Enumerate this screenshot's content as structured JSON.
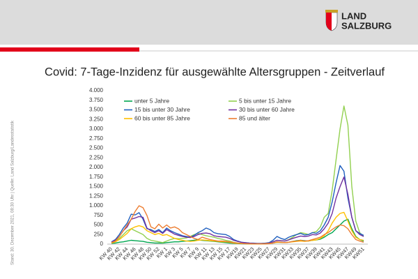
{
  "logo": {
    "line1": "LAND",
    "line2": "SALZBURG"
  },
  "source_note": "Stand: 30. Dezember 2021, 08:30 Uhr | Quelle: Land Salzburg/Landesstatistik",
  "chart_data": {
    "type": "line",
    "title": "Covid: 7-Tage-Inzidenz für ausgewählte Altersgruppen - Zeitverlauf",
    "categories": [
      "KW 40",
      null,
      "KW 42",
      null,
      "KW 44",
      null,
      "KW 46",
      null,
      "KW 48",
      null,
      "KW 50",
      null,
      "KW 52",
      null,
      "KW 1",
      null,
      "KW 3",
      null,
      "KW 5",
      null,
      "KW 7",
      null,
      "KW 9",
      null,
      "KW 11",
      null,
      "KW 13",
      null,
      "KW 15",
      null,
      "KW 17",
      null,
      "KW19",
      null,
      "KW21",
      null,
      "KW23",
      null,
      "KW25",
      null,
      "KW27",
      null,
      "KW29",
      null,
      "KW31",
      null,
      "KW33",
      null,
      "KW35",
      null,
      "KW37",
      null,
      "KW39",
      null,
      "KW41",
      null,
      "KW43",
      null,
      "KW45",
      null,
      "KW47",
      null,
      "KW49",
      null,
      "KW51"
    ],
    "series": [
      {
        "name": "unter 5 Jahre",
        "color": "#00a650",
        "values": [
          20,
          30,
          50,
          60,
          80,
          100,
          90,
          80,
          70,
          50,
          40,
          30,
          30,
          25,
          40,
          50,
          60,
          60,
          70,
          80,
          90,
          100,
          110,
          100,
          90,
          80,
          70,
          60,
          50,
          40,
          30,
          20,
          15,
          10,
          8,
          5,
          5,
          5,
          5,
          8,
          15,
          30,
          50,
          45,
          40,
          50,
          70,
          90,
          100,
          90,
          80,
          100,
          110,
          130,
          180,
          250,
          300,
          400,
          500,
          600,
          650,
          400,
          200,
          120,
          80
        ]
      },
      {
        "name": "5 bis unter 15 Jahre",
        "color": "#92d050",
        "values": [
          40,
          80,
          150,
          250,
          350,
          400,
          350,
          300,
          250,
          150,
          100,
          80,
          60,
          40,
          80,
          120,
          150,
          140,
          150,
          160,
          200,
          250,
          280,
          250,
          220,
          200,
          180,
          150,
          130,
          100,
          80,
          50,
          30,
          20,
          15,
          10,
          10,
          10,
          10,
          15,
          30,
          60,
          100,
          90,
          80,
          120,
          180,
          250,
          300,
          280,
          250,
          300,
          330,
          450,
          700,
          800,
          1400,
          2200,
          3000,
          3600,
          3100,
          1500,
          600,
          300,
          200
        ]
      },
      {
        "name": "15 bis unter 30 Jahre",
        "color": "#1f5fbf",
        "values": [
          60,
          120,
          250,
          420,
          550,
          780,
          760,
          820,
          650,
          400,
          380,
          330,
          380,
          300,
          420,
          350,
          300,
          260,
          220,
          200,
          180,
          230,
          300,
          350,
          420,
          380,
          300,
          270,
          260,
          250,
          200,
          120,
          80,
          50,
          40,
          30,
          25,
          20,
          20,
          25,
          40,
          100,
          200,
          150,
          120,
          180,
          220,
          250,
          280,
          240,
          250,
          300,
          280,
          350,
          500,
          700,
          1100,
          1600,
          2050,
          1900,
          1200,
          700,
          350,
          280,
          230
        ]
      },
      {
        "name": "30 bis unter 60 Jahre",
        "color": "#7030a0",
        "values": [
          50,
          100,
          200,
          350,
          450,
          650,
          680,
          720,
          700,
          420,
          350,
          300,
          350,
          280,
          380,
          320,
          260,
          230,
          200,
          180,
          170,
          200,
          250,
          280,
          290,
          270,
          220,
          200,
          190,
          180,
          150,
          100,
          70,
          45,
          35,
          25,
          20,
          15,
          15,
          20,
          30,
          60,
          100,
          90,
          80,
          110,
          150,
          180,
          210,
          200,
          210,
          250,
          240,
          290,
          400,
          550,
          800,
          1200,
          1500,
          1750,
          1300,
          700,
          350,
          250,
          200
        ]
      },
      {
        "name": "60 bis unter 85 Jahre",
        "color": "#ffc000",
        "values": [
          30,
          60,
          120,
          200,
          280,
          400,
          450,
          480,
          450,
          350,
          300,
          250,
          280,
          230,
          250,
          200,
          150,
          120,
          100,
          80,
          70,
          80,
          100,
          110,
          100,
          90,
          80,
          70,
          60,
          60,
          50,
          30,
          20,
          15,
          10,
          8,
          8,
          8,
          8,
          10,
          15,
          30,
          50,
          45,
          40,
          50,
          60,
          70,
          80,
          70,
          80,
          100,
          110,
          150,
          220,
          350,
          550,
          700,
          800,
          830,
          600,
          350,
          180,
          120,
          100
        ]
      },
      {
        "name": "85 und älter",
        "color": "#ed7d31",
        "values": [
          40,
          80,
          200,
          350,
          500,
          650,
          850,
          1000,
          950,
          750,
          450,
          400,
          520,
          420,
          500,
          420,
          450,
          400,
          300,
          250,
          200,
          150,
          120,
          180,
          150,
          120,
          100,
          80,
          80,
          70,
          60,
          40,
          30,
          20,
          10,
          8,
          5,
          5,
          5,
          5,
          10,
          30,
          60,
          50,
          40,
          50,
          70,
          80,
          100,
          80,
          90,
          120,
          150,
          180,
          250,
          300,
          380,
          450,
          500,
          480,
          400,
          250,
          120,
          80,
          50
        ]
      }
    ],
    "ylim": [
      0,
      4000
    ],
    "yticks": [
      0,
      250,
      500,
      750,
      {
        "value": 1000,
        "label": "1.000"
      },
      {
        "value": 1250,
        "label": "1.250"
      },
      {
        "value": 1500,
        "label": "1.500"
      },
      {
        "value": 1750,
        "label": "1.750"
      },
      {
        "value": 2000,
        "label": "2.000"
      },
      {
        "value": 2250,
        "label": "2.250"
      },
      {
        "value": 2500,
        "label": "2.500"
      },
      {
        "value": 2750,
        "label": "2.750"
      },
      {
        "value": 3000,
        "label": "3.000"
      },
      {
        "value": 3250,
        "label": "3.250"
      },
      {
        "value": 3500,
        "label": "3.500"
      },
      {
        "value": 3750,
        "label": "3.750"
      },
      {
        "value": 4000,
        "label": "4.000"
      }
    ],
    "grid": false
  }
}
